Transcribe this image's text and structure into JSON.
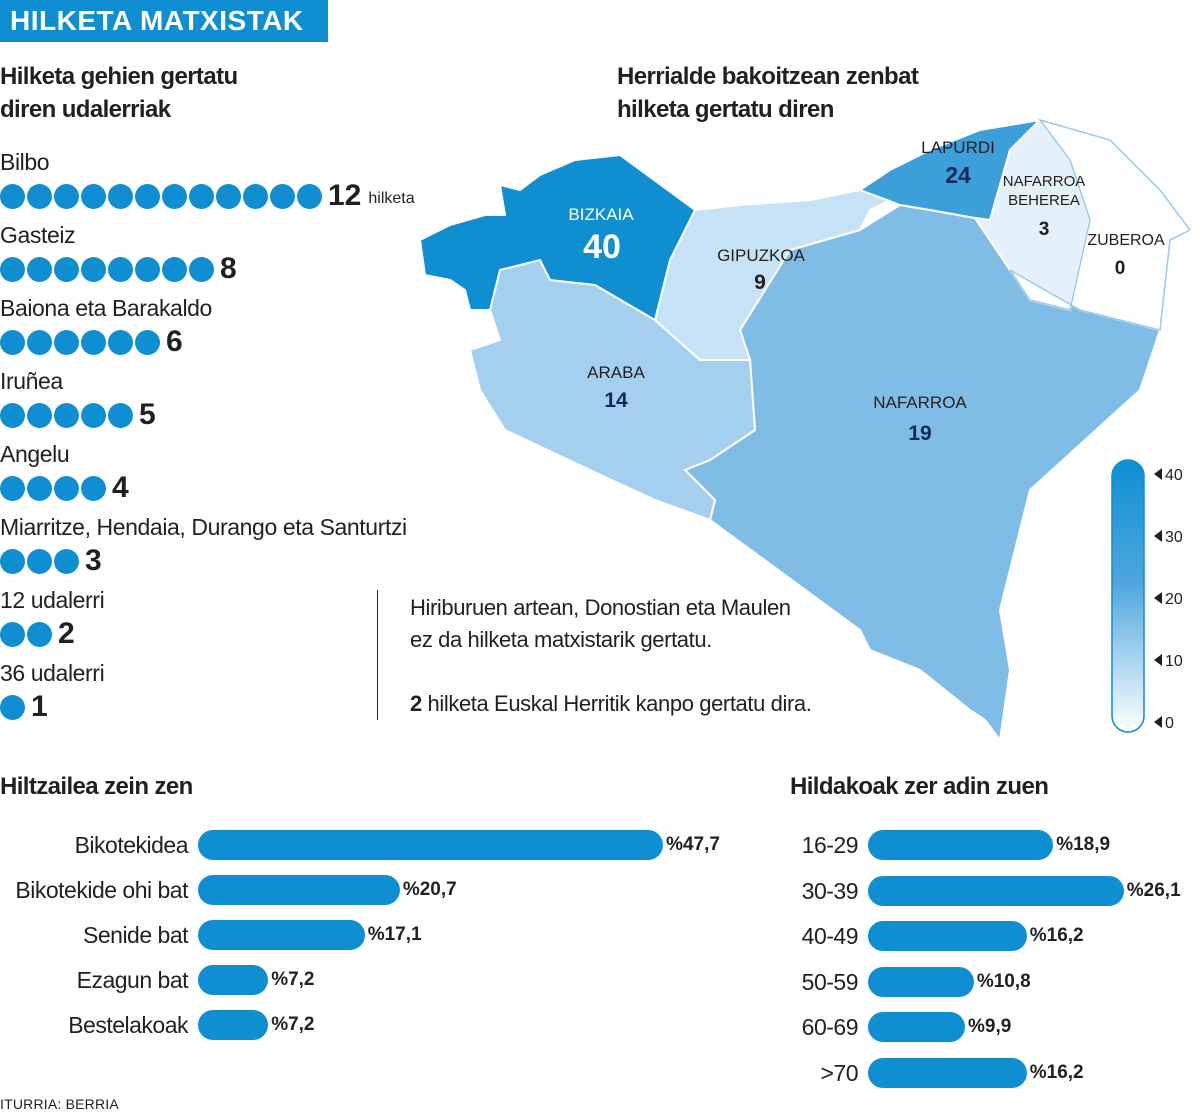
{
  "banner": "HILKETA MATXISTAK",
  "municipalities": {
    "title_line1": "Hilketa gehien gertatu",
    "title_line2": "diren udalerriak",
    "unit": "hilketa",
    "rows": [
      {
        "label": "Bilbo",
        "count": 12,
        "count_text": "12"
      },
      {
        "label": "Gasteiz",
        "count": 8,
        "count_text": "8"
      },
      {
        "label": "Baiona eta Barakaldo",
        "count": 6,
        "count_text": "6"
      },
      {
        "label": "Iruñea",
        "count": 5,
        "count_text": "5"
      },
      {
        "label": "Angelu",
        "count": 4,
        "count_text": "4"
      },
      {
        "label": "Miarritze, Hendaia, Durango eta Santurtzi",
        "count": 3,
        "count_text": "3"
      },
      {
        "label": "12 udalerri",
        "count": 2,
        "count_text": "2"
      },
      {
        "label": "36 udalerri",
        "count": 1,
        "count_text": "1"
      }
    ]
  },
  "map": {
    "title_line1": "Herrialde bakoitzean zenbat",
    "title_line2": "hilketa gertatu diren",
    "regions": [
      {
        "name": "BIZKAIA",
        "value": "40"
      },
      {
        "name": "GIPUZKOA",
        "value": "9"
      },
      {
        "name": "ARABA",
        "value": "14"
      },
      {
        "name": "NAFARROA",
        "value": "19"
      },
      {
        "name": "LAPURDI",
        "value": "24"
      },
      {
        "name_line1": "NAFARROA",
        "name_line2": "BEHEREA",
        "value": "3"
      },
      {
        "name": "ZUBEROA",
        "value": "0"
      }
    ],
    "scale_ticks": [
      "40",
      "30",
      "20",
      "10",
      "0"
    ]
  },
  "notes": {
    "line1": "Hiriburuen artean, Donostian eta Maulen",
    "line2": "ez da hilketa matxistarik gertatu.",
    "line3_bold": "2",
    "line3_rest": " hilketa Euskal Herritik kanpo gertatu dira."
  },
  "chart_data": [
    {
      "type": "bar",
      "title": "Hiltzailea zein zen",
      "categories": [
        "Bikotekidea",
        "Bikotekide ohi bat",
        "Senide bat",
        "Ezagun bat",
        "Bestelakoak"
      ],
      "values": [
        47.7,
        20.7,
        17.1,
        7.2,
        7.2
      ],
      "value_labels": [
        "%47,7",
        "%20,7",
        "%17,1",
        "%7,2",
        "%7,2"
      ],
      "orientation": "horizontal",
      "color": "#0f8fd2"
    },
    {
      "type": "bar",
      "title": "Hildakoak zer adin zuen",
      "categories": [
        "16-29",
        "30-39",
        "40-49",
        "50-59",
        "60-69",
        ">70"
      ],
      "values": [
        18.9,
        26.1,
        16.2,
        10.8,
        9.9,
        16.2
      ],
      "value_labels": [
        "%18,9",
        "%26,1",
        "%16,2",
        "%10,8",
        "%9,9",
        "%16,2"
      ],
      "orientation": "horizontal",
      "color": "#0f8fd2"
    }
  ],
  "source": "ITURRIA: BERRIA"
}
